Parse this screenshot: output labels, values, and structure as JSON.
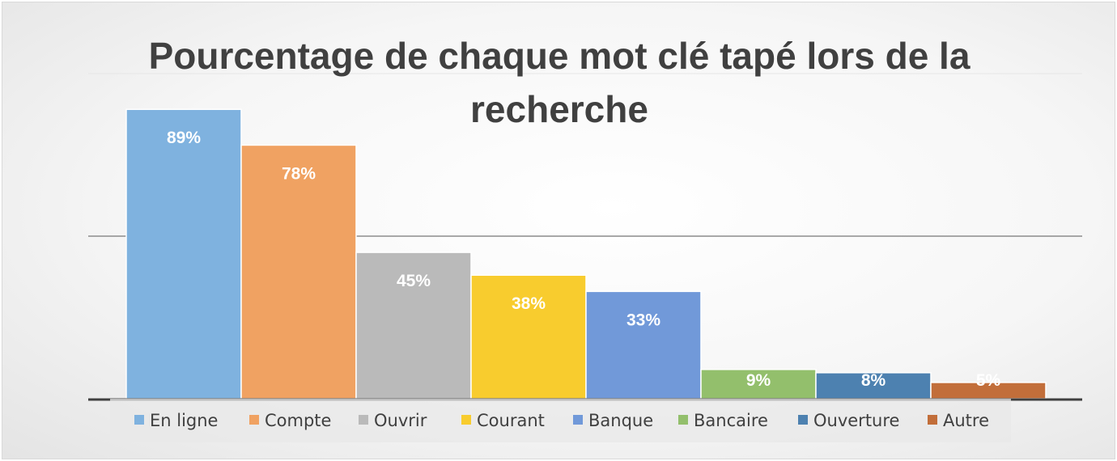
{
  "chart_data": {
    "type": "bar",
    "title_lines": [
      "Pourcentage de chaque mot clé tapé lors de la",
      "recherche"
    ],
    "categories": [
      "En ligne",
      "Compte",
      "Ouvrir",
      "Courant",
      "Banque",
      "Bancaire",
      "Ouverture",
      "Autre"
    ],
    "values": [
      89,
      78,
      45,
      38,
      33,
      9,
      8,
      5
    ],
    "data_labels": [
      "89%",
      "78%",
      "45%",
      "38%",
      "33%",
      "9%",
      "8%",
      "5%"
    ],
    "colors": [
      "#7fb2df",
      "#f0a262",
      "#bababa",
      "#f8cc2e",
      "#7199d9",
      "#93bf6c",
      "#4d81b0",
      "#c26e3a"
    ],
    "ylim": [
      0,
      100
    ],
    "grid": true,
    "legend_position": "bottom"
  }
}
